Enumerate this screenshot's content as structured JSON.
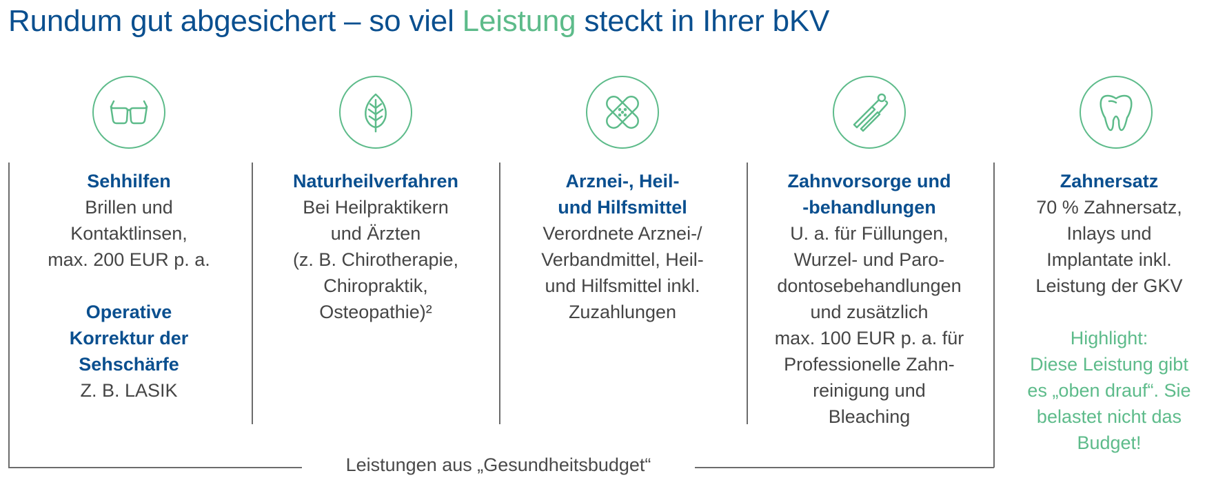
{
  "title": {
    "part1": "Rundum gut abgesichert – so viel ",
    "accent": "Leistung",
    "part2": " steckt in Ihrer bKV"
  },
  "colors": {
    "primary": "#0a4f8f",
    "accent": "#5dbb8a",
    "text": "#454545",
    "line": "#6b6b6b"
  },
  "icons": [
    "glasses-icon",
    "leaf-icon",
    "bandage-icon",
    "dental-tools-icon",
    "tooth-icon"
  ],
  "columns": [
    {
      "heading": [
        "Sehhilfen"
      ],
      "body": [
        "Brillen und",
        "Kontaktlinsen,",
        "max. 200 EUR p. a."
      ],
      "heading2": [
        "Operative",
        "Korrektur der",
        "Sehschärfe"
      ],
      "body2": [
        "Z. B. LASIK"
      ]
    },
    {
      "heading": [
        "Naturheilverfahren"
      ],
      "body": [
        "Bei Heilpraktikern",
        "und Ärzten",
        "(z. B. Chirotherapie,",
        "Chiropraktik,",
        "Osteopathie)²"
      ]
    },
    {
      "heading": [
        "Arznei-, Heil-",
        "und Hilfsmittel"
      ],
      "body": [
        "Verordnete Arznei-/",
        "Verbandmittel, Heil-",
        "und Hilfsmittel inkl.",
        "Zuzahlungen"
      ]
    },
    {
      "heading": [
        "Zahnvorsorge und",
        "-behandlungen"
      ],
      "body": [
        "U. a. für Füllungen,",
        "Wurzel- und Paro-",
        "dontosebehandlungen",
        "und zusätzlich",
        "max. 100 EUR p. a. für",
        "Professionelle Zahn-",
        "reinigung und",
        "Bleaching"
      ]
    },
    {
      "heading": [
        "Zahnersatz"
      ],
      "body": [
        "70 % Zahnersatz,",
        "Inlays und",
        "Implantate inkl.",
        "Leistung der GKV"
      ],
      "highlight": [
        "Highlight:",
        "Diese Leistung gibt",
        "es „oben drauf“. Sie",
        "belastet nicht das",
        "Budget!"
      ]
    }
  ],
  "bracket_label": "Leistungen aus „Gesundheitsbudget“"
}
